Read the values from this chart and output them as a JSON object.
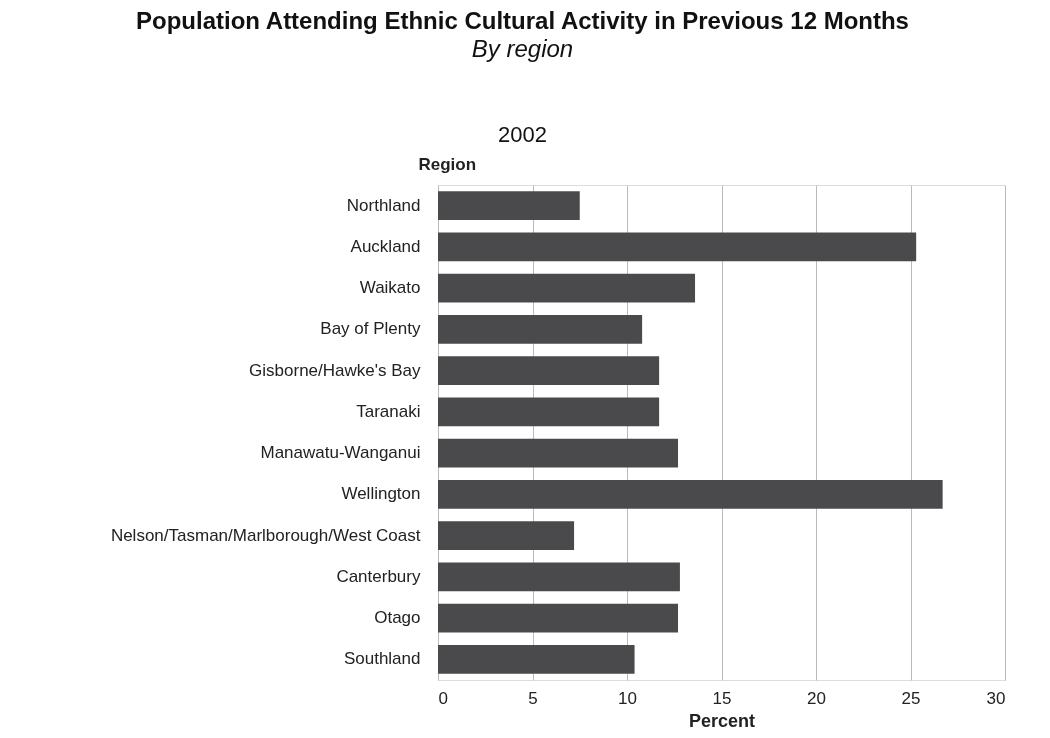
{
  "chart_data": {
    "type": "bar",
    "orientation": "horizontal",
    "title": "Population Attending Ethnic Cultural Activity in Previous 12 Months",
    "subtitle": "By region",
    "annotations": [
      "2002"
    ],
    "ylabel": "Region",
    "xlabel": "Percent",
    "categories": [
      "Northland",
      "Auckland",
      "Waikato",
      "Bay of Plenty",
      "Gisborne/Hawke's Bay",
      "Taranaki",
      "Manawatu-Wanganui",
      "Wellington",
      "Nelson/Tasman/Marlborough/West Coast",
      "Canterbury",
      "Otago",
      "Southland"
    ],
    "values": [
      7.5,
      25.3,
      13.6,
      10.8,
      11.7,
      11.7,
      12.7,
      26.7,
      7.2,
      12.8,
      12.7,
      10.4
    ],
    "color": "#4a4a4c",
    "xlim": [
      0,
      30
    ],
    "xticks": [
      0,
      5,
      10,
      15,
      20,
      25,
      30
    ],
    "grid": "x"
  }
}
